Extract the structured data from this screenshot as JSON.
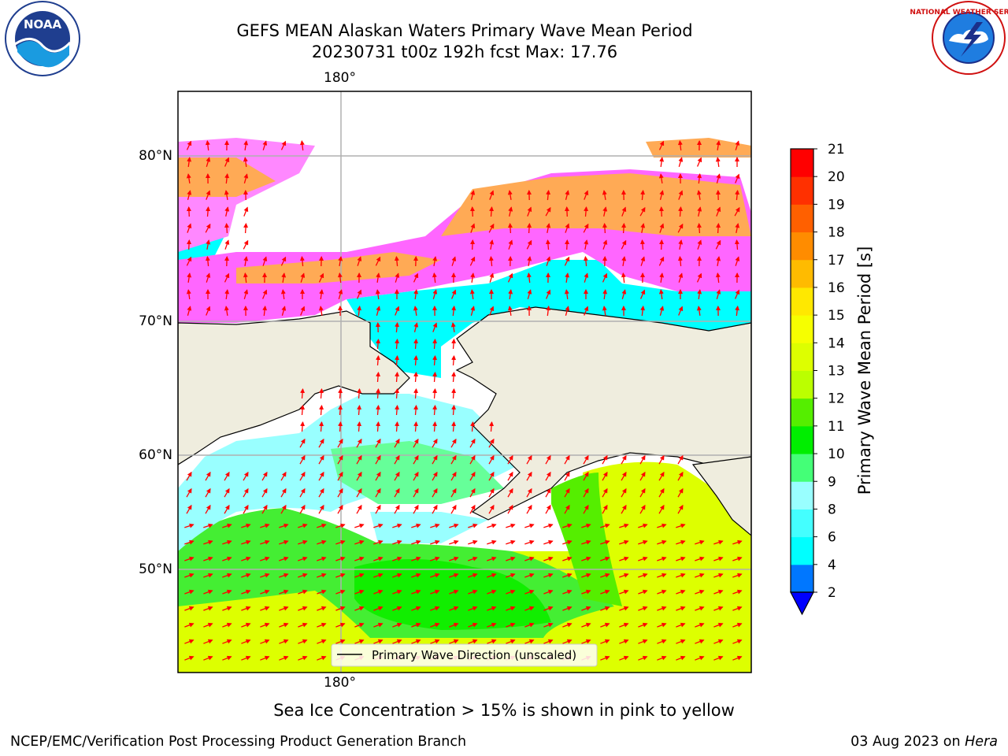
{
  "title": {
    "line1": "GEFS MEAN Alaskan Waters Primary Wave Mean Period",
    "line2": "20230731 t00z 192h fcst   Max: 17.76"
  },
  "map": {
    "longitude_label_top": "180°",
    "longitude_label_bottom": "180°",
    "latitude_labels": [
      "80°N",
      "70°N",
      "60°N",
      "50°N"
    ],
    "legend_label": "Primary Wave Direction (unscaled)",
    "land_color": "#efedde",
    "vector_color": "#ff0000"
  },
  "colorbar": {
    "label": "Primary Wave Mean Period [s]",
    "ticks": [
      "2",
      "4",
      "6",
      "8",
      "9",
      "10",
      "11",
      "12",
      "13",
      "14",
      "15",
      "16",
      "17",
      "18",
      "19",
      "20",
      "21"
    ],
    "colors": [
      "#0077ff",
      "#00ffff",
      "#44ffff",
      "#99ffff",
      "#44ff77",
      "#00ee00",
      "#55ee00",
      "#bbff00",
      "#ddff00",
      "#f6ff00",
      "#ffe800",
      "#ffbb00",
      "#ff8c00",
      "#ff6000",
      "#ff3000",
      "#ff0000"
    ],
    "under_color": "#0000ff"
  },
  "caption": "Sea Ice Concentration > 15% is shown in pink to yellow",
  "footer": {
    "left": "NCEP/EMC/Verification Post Processing Product Generation Branch",
    "date": "03 Aug 2023 on ",
    "machine": "Hera"
  },
  "logos": {
    "noaa": "NOAA",
    "nws_ring": "NATIONAL WEATHER SERVICE"
  }
}
